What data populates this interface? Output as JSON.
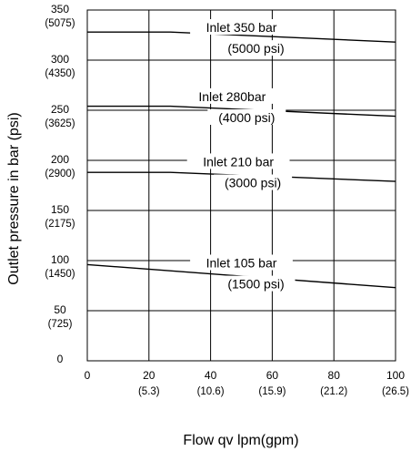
{
  "chart_data": {
    "type": "line",
    "title": "",
    "xlabel": "Flow qv  lpm(gpm)",
    "ylabel": "Outlet pressure in bar (psi)",
    "xlim": [
      0,
      100
    ],
    "ylim": [
      0,
      350
    ],
    "grid": true,
    "x_ticks": [
      {
        "value": 0,
        "label": "0",
        "sub": ""
      },
      {
        "value": 20,
        "label": "20",
        "sub": "(5.3)"
      },
      {
        "value": 40,
        "label": "40",
        "sub": "(10.6)"
      },
      {
        "value": 60,
        "label": "60",
        "sub": "(15.9)"
      },
      {
        "value": 80,
        "label": "80",
        "sub": "(21.2)"
      },
      {
        "value": 100,
        "label": "100",
        "sub": "(26.5)"
      }
    ],
    "y_ticks": [
      {
        "value": 350,
        "label": "350",
        "sub": "(5075)"
      },
      {
        "value": 300,
        "label": "300",
        "sub": "(4350)"
      },
      {
        "value": 250,
        "label": "250",
        "sub": "(3625)"
      },
      {
        "value": 200,
        "label": "200",
        "sub": "(2900)"
      },
      {
        "value": 150,
        "label": "150",
        "sub": "(2175)"
      },
      {
        "value": 100,
        "label": "100",
        "sub": "(1450)"
      },
      {
        "value": 50,
        "label": "50",
        "sub": "(725)"
      },
      {
        "value": 0,
        "label": "0",
        "sub": ""
      }
    ],
    "series": [
      {
        "name": "Inlet 350 bar",
        "name_sub": "(5000 psi)",
        "label_x": 50,
        "label_value": 330,
        "sub_value": 309,
        "x": [
          0,
          27,
          100
        ],
        "y": [
          328,
          328,
          318
        ]
      },
      {
        "name": "Inlet 280bar",
        "name_sub": "(4000 psi)",
        "label_x": 47,
        "label_value": 261,
        "sub_value": 240,
        "x": [
          0,
          27,
          100
        ],
        "y": [
          254,
          254,
          244
        ]
      },
      {
        "name": "Inlet 210 bar",
        "name_sub": "(3000 psi)",
        "label_x": 49,
        "label_value": 196,
        "sub_value": 175,
        "x": [
          0,
          27,
          100
        ],
        "y": [
          188,
          188,
          179
        ]
      },
      {
        "name": "Inlet 105 bar",
        "name_sub": "(1500 psi)",
        "label_x": 50,
        "label_value": 95,
        "sub_value": 74,
        "x": [
          0,
          100
        ],
        "y": [
          96,
          73
        ]
      }
    ]
  }
}
